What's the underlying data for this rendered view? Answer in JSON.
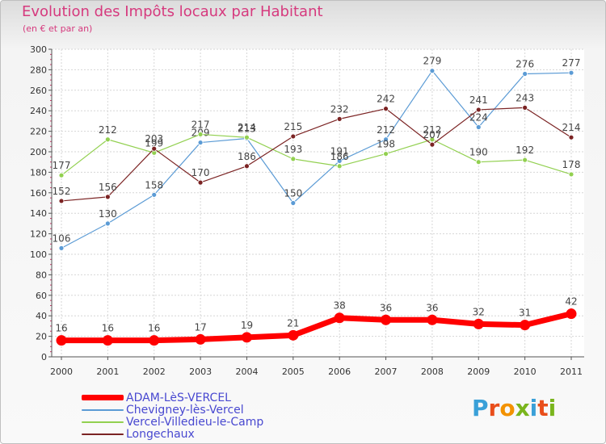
{
  "title": "Evolution des Impôts locaux par Habitant",
  "subtitle": "(en € et par an)",
  "logo": {
    "text": "Proxiti",
    "letter_colors": [
      "#3aa0d8",
      "#e94e1b",
      "#f39200",
      "#7ab51d",
      "#3aa0d8",
      "#e94e1b",
      "#7ab51d"
    ]
  },
  "chart_data": {
    "type": "line",
    "x": [
      "2000",
      "2001",
      "2002",
      "2003",
      "2004",
      "2005",
      "2006",
      "2007",
      "2008",
      "2009",
      "2010",
      "2011"
    ],
    "ylim": [
      0,
      300
    ],
    "yticks": [
      0,
      20,
      40,
      60,
      80,
      100,
      120,
      140,
      160,
      180,
      200,
      220,
      240,
      260,
      280,
      300
    ],
    "grid": true,
    "legend_position": "bottom-left",
    "series": [
      {
        "name": "ADAM-LèS-VERCEL",
        "values": [
          16,
          16,
          16,
          17,
          19,
          21,
          38,
          36,
          36,
          32,
          31,
          42
        ],
        "color": "#ff0000",
        "emphasis": true
      },
      {
        "name": "Chevigney-lès-Vercel",
        "values": [
          106,
          130,
          158,
          209,
          213,
          150,
          191,
          212,
          279,
          224,
          276,
          277
        ],
        "color": "#5b9bd5"
      },
      {
        "name": "Vercel-Villedieu-le-Camp",
        "values": [
          177,
          212,
          199,
          217,
          214,
          193,
          186,
          198,
          212,
          190,
          192,
          178
        ],
        "color": "#92d050"
      },
      {
        "name": "Longechaux",
        "values": [
          152,
          156,
          203,
          170,
          186,
          215,
          232,
          242,
          207,
          241,
          243,
          214
        ],
        "color": "#7b2323"
      }
    ]
  }
}
